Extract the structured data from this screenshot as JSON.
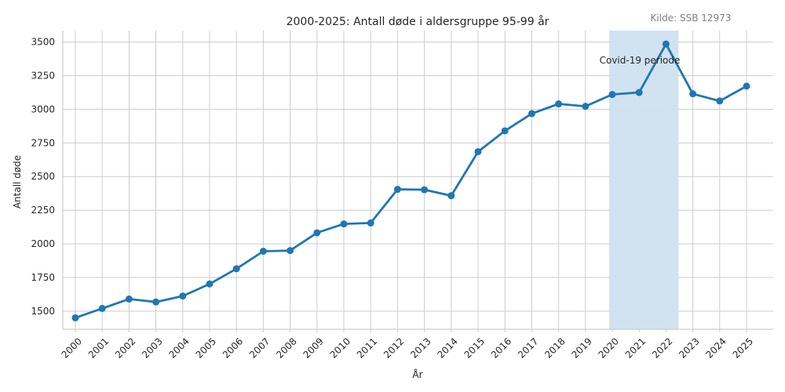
{
  "chart_data": {
    "type": "line",
    "title": "2000-2025: Antall døde i aldersgruppe 95-99 år",
    "source": "Kilde: SSB 12973",
    "xlabel": "År",
    "ylabel": "Antall døde",
    "categories": [
      "2000",
      "2001",
      "2002",
      "2003",
      "2004",
      "2005",
      "2006",
      "2007",
      "2008",
      "2009",
      "2010",
      "2011",
      "2012",
      "2013",
      "2014",
      "2015",
      "2016",
      "2017",
      "2018",
      "2019",
      "2020",
      "2021",
      "2022",
      "2023",
      "2024",
      "2025"
    ],
    "series": [
      {
        "values": [
          1450,
          1520,
          1590,
          1568,
          1612,
          1702,
          1815,
          1945,
          1950,
          2082,
          2148,
          2155,
          2405,
          2402,
          2358,
          2685,
          2840,
          2968,
          3040,
          3022,
          3110,
          3125,
          3485,
          3115,
          3062,
          3172
        ],
        "color": "#1f77b4"
      }
    ],
    "yticks": [
      1500,
      1750,
      2000,
      2250,
      2500,
      2750,
      3000,
      3250,
      3500
    ],
    "ylim": [
      1365,
      3585
    ],
    "grid": true,
    "highlight": {
      "label": "Covid-19 periode",
      "from": "2020",
      "to": "2022",
      "color": "#cfe2f0"
    }
  }
}
